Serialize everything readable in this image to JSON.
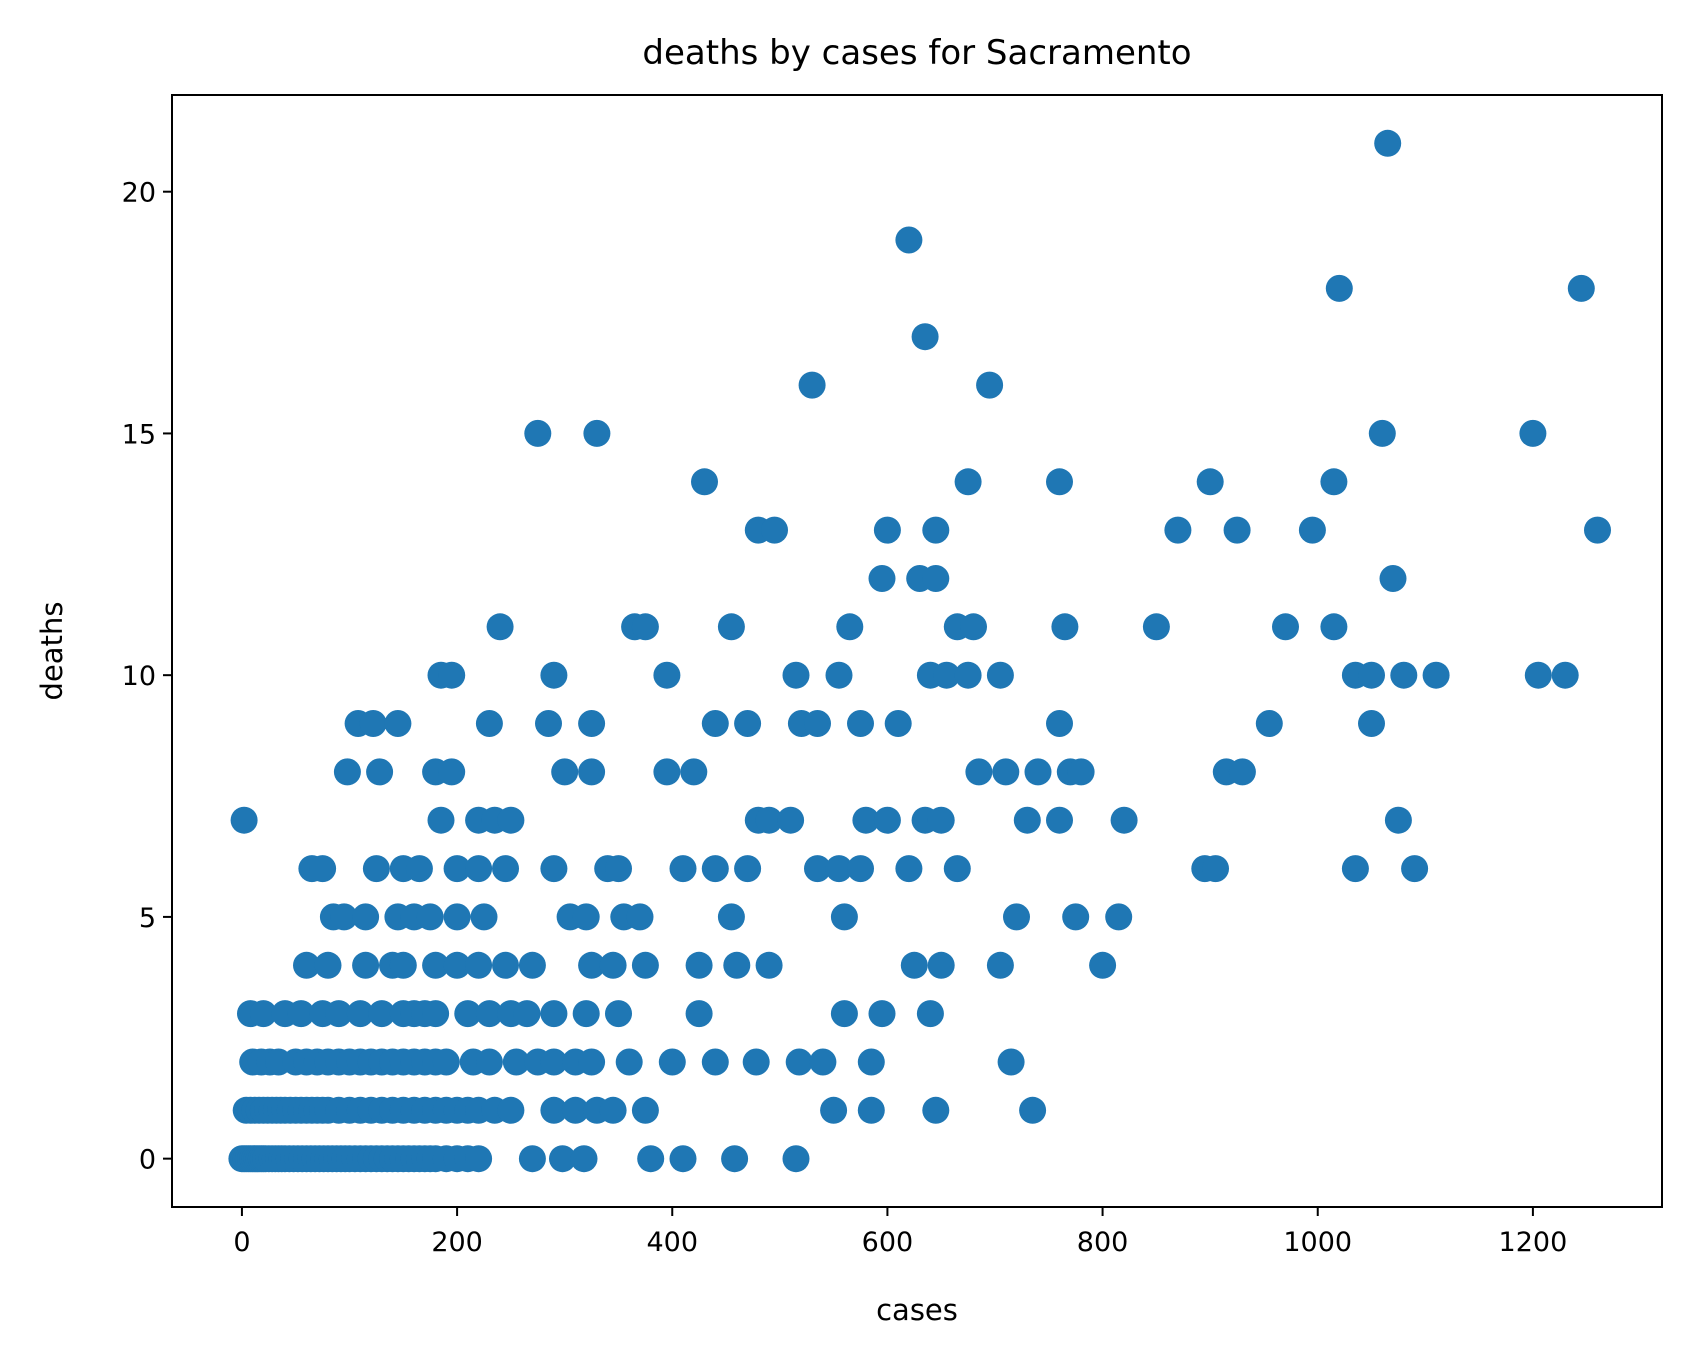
{
  "chart_data": {
    "type": "scatter",
    "title": "deaths by cases for Sacramento",
    "xlabel": "cases",
    "ylabel": "deaths",
    "xlim": [
      -65,
      1320
    ],
    "ylim": [
      -1,
      22
    ],
    "xticks": [
      0,
      200,
      400,
      600,
      800,
      1000,
      1200
    ],
    "yticks": [
      0,
      5,
      10,
      15,
      20
    ],
    "grid": false,
    "legend": "none",
    "marker_color": "#1f77b4",
    "points": [
      [
        0,
        0
      ],
      [
        2,
        0
      ],
      [
        4,
        0
      ],
      [
        6,
        0
      ],
      [
        8,
        0
      ],
      [
        10,
        0
      ],
      [
        12,
        0
      ],
      [
        14,
        0
      ],
      [
        16,
        0
      ],
      [
        18,
        0
      ],
      [
        20,
        0
      ],
      [
        22,
        0
      ],
      [
        25,
        0
      ],
      [
        28,
        0
      ],
      [
        31,
        0
      ],
      [
        34,
        0
      ],
      [
        37,
        0
      ],
      [
        40,
        0
      ],
      [
        44,
        0
      ],
      [
        48,
        0
      ],
      [
        52,
        0
      ],
      [
        56,
        0
      ],
      [
        60,
        0
      ],
      [
        64,
        0
      ],
      [
        68,
        0
      ],
      [
        72,
        0
      ],
      [
        76,
        0
      ],
      [
        80,
        0
      ],
      [
        84,
        0
      ],
      [
        88,
        0
      ],
      [
        92,
        0
      ],
      [
        96,
        0
      ],
      [
        100,
        0
      ],
      [
        105,
        0
      ],
      [
        110,
        0
      ],
      [
        115,
        0
      ],
      [
        120,
        0
      ],
      [
        125,
        0
      ],
      [
        130,
        0
      ],
      [
        135,
        0
      ],
      [
        140,
        0
      ],
      [
        145,
        0
      ],
      [
        150,
        0
      ],
      [
        155,
        0
      ],
      [
        160,
        0
      ],
      [
        165,
        0
      ],
      [
        170,
        0
      ],
      [
        175,
        0
      ],
      [
        180,
        0
      ],
      [
        190,
        0
      ],
      [
        200,
        0
      ],
      [
        210,
        0
      ],
      [
        220,
        0
      ],
      [
        270,
        0
      ],
      [
        298,
        0
      ],
      [
        318,
        0
      ],
      [
        380,
        0
      ],
      [
        410,
        0
      ],
      [
        458,
        0
      ],
      [
        515,
        0
      ],
      [
        4,
        1
      ],
      [
        8,
        1
      ],
      [
        12,
        1
      ],
      [
        16,
        1
      ],
      [
        20,
        1
      ],
      [
        24,
        1
      ],
      [
        28,
        1
      ],
      [
        32,
        1
      ],
      [
        36,
        1
      ],
      [
        40,
        1
      ],
      [
        45,
        1
      ],
      [
        50,
        1
      ],
      [
        55,
        1
      ],
      [
        60,
        1
      ],
      [
        65,
        1
      ],
      [
        70,
        1
      ],
      [
        75,
        1
      ],
      [
        80,
        1
      ],
      [
        90,
        1
      ],
      [
        100,
        1
      ],
      [
        110,
        1
      ],
      [
        120,
        1
      ],
      [
        130,
        1
      ],
      [
        140,
        1
      ],
      [
        150,
        1
      ],
      [
        160,
        1
      ],
      [
        170,
        1
      ],
      [
        180,
        1
      ],
      [
        190,
        1
      ],
      [
        200,
        1
      ],
      [
        210,
        1
      ],
      [
        220,
        1
      ],
      [
        235,
        1
      ],
      [
        250,
        1
      ],
      [
        290,
        1
      ],
      [
        310,
        1
      ],
      [
        330,
        1
      ],
      [
        345,
        1
      ],
      [
        375,
        1
      ],
      [
        550,
        1
      ],
      [
        585,
        1
      ],
      [
        645,
        1
      ],
      [
        735,
        1
      ],
      [
        10,
        2
      ],
      [
        18,
        2
      ],
      [
        26,
        2
      ],
      [
        34,
        2
      ],
      [
        50,
        2
      ],
      [
        60,
        2
      ],
      [
        70,
        2
      ],
      [
        80,
        2
      ],
      [
        90,
        2
      ],
      [
        100,
        2
      ],
      [
        110,
        2
      ],
      [
        120,
        2
      ],
      [
        130,
        2
      ],
      [
        140,
        2
      ],
      [
        150,
        2
      ],
      [
        160,
        2
      ],
      [
        170,
        2
      ],
      [
        180,
        2
      ],
      [
        190,
        2
      ],
      [
        215,
        2
      ],
      [
        230,
        2
      ],
      [
        255,
        2
      ],
      [
        275,
        2
      ],
      [
        290,
        2
      ],
      [
        310,
        2
      ],
      [
        325,
        2
      ],
      [
        360,
        2
      ],
      [
        400,
        2
      ],
      [
        440,
        2
      ],
      [
        478,
        2
      ],
      [
        518,
        2
      ],
      [
        540,
        2
      ],
      [
        585,
        2
      ],
      [
        715,
        2
      ],
      [
        8,
        3
      ],
      [
        20,
        3
      ],
      [
        40,
        3
      ],
      [
        55,
        3
      ],
      [
        75,
        3
      ],
      [
        90,
        3
      ],
      [
        110,
        3
      ],
      [
        130,
        3
      ],
      [
        150,
        3
      ],
      [
        160,
        3
      ],
      [
        170,
        3
      ],
      [
        180,
        3
      ],
      [
        210,
        3
      ],
      [
        230,
        3
      ],
      [
        250,
        3
      ],
      [
        265,
        3
      ],
      [
        290,
        3
      ],
      [
        320,
        3
      ],
      [
        350,
        3
      ],
      [
        425,
        3
      ],
      [
        560,
        3
      ],
      [
        595,
        3
      ],
      [
        640,
        3
      ],
      [
        60,
        4
      ],
      [
        80,
        4
      ],
      [
        115,
        4
      ],
      [
        140,
        4
      ],
      [
        150,
        4
      ],
      [
        180,
        4
      ],
      [
        200,
        4
      ],
      [
        220,
        4
      ],
      [
        245,
        4
      ],
      [
        270,
        4
      ],
      [
        325,
        4
      ],
      [
        345,
        4
      ],
      [
        375,
        4
      ],
      [
        425,
        4
      ],
      [
        460,
        4
      ],
      [
        490,
        4
      ],
      [
        625,
        4
      ],
      [
        650,
        4
      ],
      [
        705,
        4
      ],
      [
        800,
        4
      ],
      [
        85,
        5
      ],
      [
        95,
        5
      ],
      [
        115,
        5
      ],
      [
        145,
        5
      ],
      [
        160,
        5
      ],
      [
        175,
        5
      ],
      [
        200,
        5
      ],
      [
        225,
        5
      ],
      [
        305,
        5
      ],
      [
        320,
        5
      ],
      [
        355,
        5
      ],
      [
        370,
        5
      ],
      [
        455,
        5
      ],
      [
        560,
        5
      ],
      [
        720,
        5
      ],
      [
        775,
        5
      ],
      [
        815,
        5
      ],
      [
        65,
        6
      ],
      [
        75,
        6
      ],
      [
        125,
        6
      ],
      [
        150,
        6
      ],
      [
        165,
        6
      ],
      [
        200,
        6
      ],
      [
        220,
        6
      ],
      [
        245,
        6
      ],
      [
        290,
        6
      ],
      [
        340,
        6
      ],
      [
        350,
        6
      ],
      [
        410,
        6
      ],
      [
        440,
        6
      ],
      [
        470,
        6
      ],
      [
        535,
        6
      ],
      [
        555,
        6
      ],
      [
        575,
        6
      ],
      [
        620,
        6
      ],
      [
        665,
        6
      ],
      [
        895,
        6
      ],
      [
        905,
        6
      ],
      [
        1035,
        6
      ],
      [
        1090,
        6
      ],
      [
        2,
        7
      ],
      [
        185,
        7
      ],
      [
        220,
        7
      ],
      [
        235,
        7
      ],
      [
        250,
        7
      ],
      [
        480,
        7
      ],
      [
        490,
        7
      ],
      [
        510,
        7
      ],
      [
        580,
        7
      ],
      [
        600,
        7
      ],
      [
        635,
        7
      ],
      [
        650,
        7
      ],
      [
        730,
        7
      ],
      [
        760,
        7
      ],
      [
        820,
        7
      ],
      [
        1075,
        7
      ],
      [
        98,
        8
      ],
      [
        128,
        8
      ],
      [
        180,
        8
      ],
      [
        195,
        8
      ],
      [
        300,
        8
      ],
      [
        325,
        8
      ],
      [
        395,
        8
      ],
      [
        420,
        8
      ],
      [
        685,
        8
      ],
      [
        710,
        8
      ],
      [
        740,
        8
      ],
      [
        770,
        8
      ],
      [
        780,
        8
      ],
      [
        915,
        8
      ],
      [
        930,
        8
      ],
      [
        108,
        9
      ],
      [
        122,
        9
      ],
      [
        145,
        9
      ],
      [
        230,
        9
      ],
      [
        285,
        9
      ],
      [
        325,
        9
      ],
      [
        440,
        9
      ],
      [
        470,
        9
      ],
      [
        520,
        9
      ],
      [
        535,
        9
      ],
      [
        575,
        9
      ],
      [
        610,
        9
      ],
      [
        760,
        9
      ],
      [
        955,
        9
      ],
      [
        1050,
        9
      ],
      [
        185,
        10
      ],
      [
        195,
        10
      ],
      [
        290,
        10
      ],
      [
        395,
        10
      ],
      [
        515,
        10
      ],
      [
        555,
        10
      ],
      [
        640,
        10
      ],
      [
        655,
        10
      ],
      [
        675,
        10
      ],
      [
        705,
        10
      ],
      [
        1035,
        10
      ],
      [
        1050,
        10
      ],
      [
        1080,
        10
      ],
      [
        1110,
        10
      ],
      [
        1205,
        10
      ],
      [
        1230,
        10
      ],
      [
        240,
        11
      ],
      [
        365,
        11
      ],
      [
        375,
        11
      ],
      [
        455,
        11
      ],
      [
        565,
        11
      ],
      [
        665,
        11
      ],
      [
        680,
        11
      ],
      [
        765,
        11
      ],
      [
        850,
        11
      ],
      [
        970,
        11
      ],
      [
        1015,
        11
      ],
      [
        595,
        12
      ],
      [
        630,
        12
      ],
      [
        645,
        12
      ],
      [
        1070,
        12
      ],
      [
        480,
        13
      ],
      [
        495,
        13
      ],
      [
        600,
        13
      ],
      [
        645,
        13
      ],
      [
        870,
        13
      ],
      [
        925,
        13
      ],
      [
        995,
        13
      ],
      [
        1260,
        13
      ],
      [
        430,
        14
      ],
      [
        675,
        14
      ],
      [
        760,
        14
      ],
      [
        900,
        14
      ],
      [
        1015,
        14
      ],
      [
        275,
        15
      ],
      [
        330,
        15
      ],
      [
        1060,
        15
      ],
      [
        1200,
        15
      ],
      [
        530,
        16
      ],
      [
        695,
        16
      ],
      [
        635,
        17
      ],
      [
        1020,
        18
      ],
      [
        1245,
        18
      ],
      [
        620,
        19
      ],
      [
        1065,
        21
      ]
    ]
  }
}
